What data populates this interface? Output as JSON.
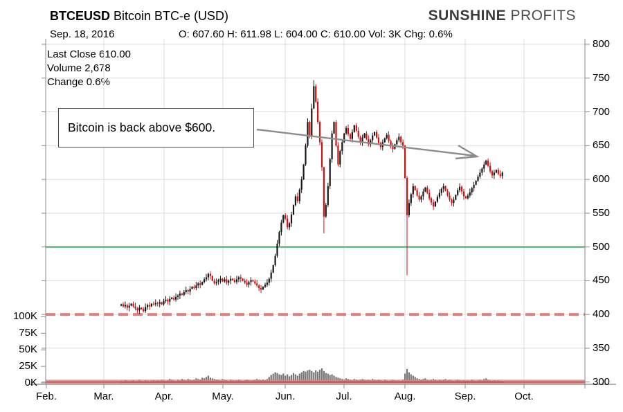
{
  "header": {
    "symbol": "BTCEUSD",
    "title": " Bitcoin BTC-e (USD)",
    "date": "Sep. 18, 2016",
    "ohlc_line": "O: 607.60 H: 611.98 L: 604.00 C: 610.00 Vol: 3K Chg: 0.6%"
  },
  "logo": {
    "word1": "SUNSHINE",
    "word2": " PROFITS"
  },
  "info_box": {
    "lines": [
      "Last Close 610.00",
      "Volume 2,678",
      "Change 0.6%"
    ]
  },
  "annotation": {
    "text": "Bitcoin is back above $600.",
    "arrow_color": "#8c8c8c"
  },
  "chart_data": {
    "type": "candlestick+volume",
    "title": "BTCEUSD Bitcoin BTC-e (USD) daily, Feb.-Oct. 2016",
    "x_axis": {
      "labels": [
        "Feb.",
        "Mar.",
        "Apr.",
        "May.",
        "Jun.",
        "Jul.",
        "Aug.",
        "Sep.",
        "Oct."
      ]
    },
    "price_axis": {
      "side": "right",
      "range": [
        300,
        800
      ],
      "ticks": [
        800,
        750,
        700,
        650,
        600,
        550,
        500,
        450,
        400,
        350,
        300
      ]
    },
    "volume_axis": {
      "side": "left",
      "range_k": [
        0,
        100
      ],
      "ticks": [
        "100K",
        "75K",
        "50K",
        "25K",
        "0K"
      ],
      "tick_values_k": [
        100,
        75,
        50,
        25,
        0
      ]
    },
    "levels": [
      {
        "value": 500,
        "style": "solid",
        "color": "#6ec492",
        "name": "resistance-500"
      },
      {
        "value": 400,
        "style": "dashed",
        "color": "#dd8080",
        "name": "support-400"
      },
      {
        "value": 300,
        "style": "band",
        "color": "#dd8080",
        "core_color": "#c05050",
        "name": "support-300"
      }
    ],
    "series_start_date": "2016-03-14",
    "series_end_date": "2016-09-18",
    "open_first": 413,
    "closes": [
      415,
      412,
      414,
      410,
      413,
      416,
      412,
      409,
      406,
      410,
      408,
      405,
      411,
      414,
      412,
      416,
      415,
      417,
      416,
      418,
      415,
      420,
      422,
      419,
      423,
      425,
      422,
      426,
      428,
      431,
      429,
      433,
      436,
      434,
      438,
      441,
      439,
      443,
      446,
      444,
      448,
      452,
      455,
      460,
      457,
      450,
      446,
      448,
      451,
      453,
      449,
      452,
      447,
      450,
      453,
      451,
      448,
      452,
      455,
      453,
      450,
      447,
      444,
      448,
      451,
      449,
      446,
      443,
      439,
      437,
      441,
      444,
      447,
      453,
      462,
      473,
      487,
      505,
      522,
      536,
      547,
      542,
      529,
      535,
      548,
      562,
      575,
      568,
      585,
      600,
      622,
      650,
      685,
      665,
      705,
      738,
      715,
      685,
      655,
      618,
      545,
      562,
      590,
      630,
      668,
      685,
      650,
      622,
      642,
      655,
      668,
      676,
      667,
      660,
      670,
      680,
      672,
      663,
      655,
      662,
      668,
      660,
      652,
      658,
      665,
      670,
      662,
      654,
      648,
      655,
      661,
      666,
      657,
      650,
      645,
      652,
      658,
      663,
      655,
      650,
      602,
      547,
      565,
      578,
      590,
      584,
      576,
      570,
      575,
      582,
      588,
      580,
      572,
      566,
      560,
      567,
      574,
      580,
      586,
      590,
      583,
      576,
      570,
      565,
      570,
      577,
      584,
      589,
      582,
      575,
      572,
      576,
      581,
      587,
      592,
      598,
      604,
      610,
      616,
      622,
      628,
      620,
      612,
      606,
      610,
      614,
      608,
      605,
      610
    ],
    "volumes_k": [
      3,
      2,
      4,
      3,
      2,
      3,
      4,
      2,
      3,
      5,
      3,
      2,
      4,
      3,
      2,
      3,
      4,
      3,
      4,
      3,
      5,
      4,
      3,
      4,
      6,
      5,
      4,
      3,
      5,
      4,
      6,
      5,
      4,
      6,
      5,
      4,
      5,
      7,
      6,
      5,
      8,
      7,
      9,
      11,
      8,
      7,
      6,
      5,
      5,
      4,
      6,
      5,
      4,
      3,
      5,
      4,
      3,
      4,
      5,
      4,
      3,
      4,
      5,
      4,
      3,
      4,
      5,
      6,
      5,
      4,
      5,
      4,
      6,
      9,
      12,
      14,
      16,
      15,
      13,
      12,
      14,
      11,
      13,
      10,
      12,
      15,
      13,
      11,
      14,
      16,
      18,
      17,
      19,
      20,
      18,
      16,
      19,
      17,
      20,
      22,
      18,
      15,
      14,
      12,
      13,
      11,
      9,
      8,
      7,
      6,
      5,
      7,
      6,
      5,
      4,
      6,
      5,
      4,
      5,
      6,
      5,
      4,
      5,
      4,
      6,
      5,
      4,
      5,
      4,
      3,
      5,
      4,
      3,
      4,
      5,
      4,
      3,
      4,
      3,
      5,
      14,
      21,
      16,
      13,
      11,
      9,
      7,
      6,
      5,
      6,
      7,
      5,
      4,
      5,
      6,
      5,
      4,
      5,
      4,
      5,
      6,
      4,
      5,
      4,
      3,
      4,
      5,
      4,
      3,
      4,
      3,
      4,
      3,
      5,
      4,
      3,
      4,
      5,
      4,
      6,
      7,
      5,
      4,
      3,
      4,
      3,
      4,
      3,
      3
    ],
    "wick_highs": {
      "94": 712,
      "95": 747
    },
    "wick_lows": {
      "100": 520,
      "141": 458
    },
    "colors": {
      "up": "#161616",
      "down": "#cc1111",
      "volume": "#757575",
      "grid": "#dcdcdc",
      "axis": "#8a8a8a"
    }
  }
}
